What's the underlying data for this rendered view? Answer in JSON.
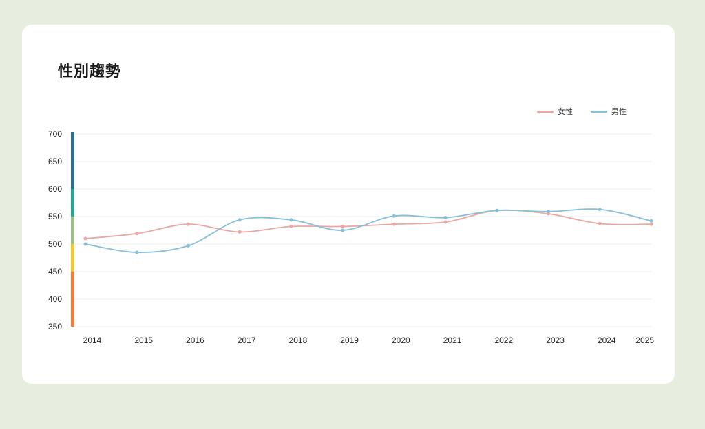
{
  "page": {
    "title": "性別趨勢"
  },
  "chart_data": {
    "type": "line",
    "title": "性別趨勢",
    "xlabel": "",
    "ylabel": "",
    "categories": [
      "2014",
      "2015",
      "2016",
      "2017",
      "2018",
      "2019",
      "2020",
      "2021",
      "2022",
      "2023",
      "2024",
      "2025"
    ],
    "ylim": [
      350,
      700
    ],
    "yticks": [
      350,
      400,
      450,
      500,
      550,
      600,
      650,
      700
    ],
    "grid": true,
    "legend_position": "top-right",
    "series": [
      {
        "name": "女性",
        "color": "#eaa8a4",
        "values": [
          510,
          519,
          536,
          522,
          532,
          532,
          536,
          540,
          561,
          555,
          537,
          536
        ]
      },
      {
        "name": "男性",
        "color": "#86c0d8",
        "values": [
          500,
          485,
          497,
          544,
          544,
          525,
          551,
          548,
          561,
          559,
          563,
          542
        ]
      }
    ],
    "band_scale": [
      {
        "from": 350,
        "to": 450,
        "color": "#f07c3e"
      },
      {
        "from": 450,
        "to": 500,
        "color": "#f2c830"
      },
      {
        "from": 500,
        "to": 550,
        "color": "#9fbf8a"
      },
      {
        "from": 550,
        "to": 600,
        "color": "#2aa58f"
      },
      {
        "from": 600,
        "to": 700,
        "color": "#2e6d92"
      }
    ]
  }
}
